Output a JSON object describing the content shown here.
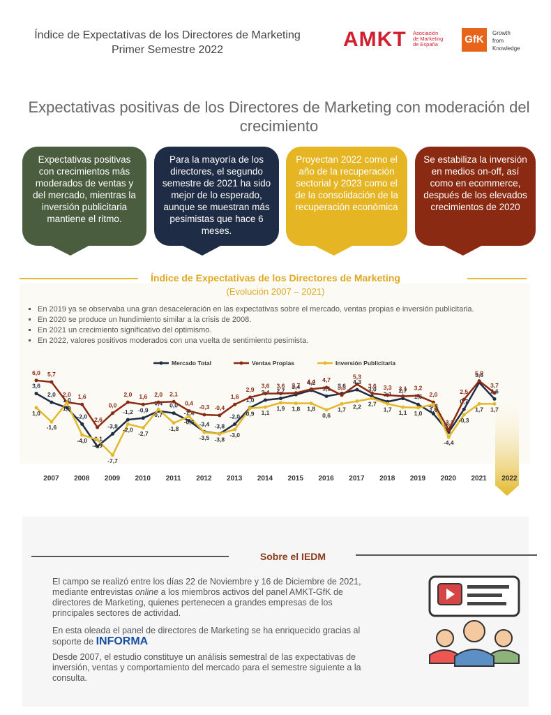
{
  "header": {
    "title": "Índice de Expectativas de los Directores de Marketing",
    "subtitle": "Primer Semestre 2022",
    "amkt": "AMKT",
    "amkt_lines": [
      "Asociación",
      "de Marketing",
      "de España"
    ],
    "gfk": "GfK",
    "gfk_lines": [
      "Growth",
      "from",
      "Knowledge"
    ]
  },
  "headline": "Expectativas positivas de los Directores de Marketing con moderación del crecimiento",
  "bubbles": [
    "Expectativas positivas con crecimientos más moderados de ventas y del mercado, mientras la inversión publicitaria mantiene el ritmo.",
    "Para la mayoría de los directores, el segundo semestre de 2021 ha sido mejor de lo esperado, aunque se muestran más pesimistas que hace 6 meses.",
    "Proyectan 2022 como el año de la recuperación sectorial y 2023 como el de la consolidación de la recuperación económica",
    "Se estabiliza la inversión en medios on-off, así como en ecommerce, después de los elevados crecimientos de 2020"
  ],
  "chart_data": {
    "type": "line",
    "title": "Índice de Expectativas de los Directores de Marketing",
    "subtitle": "(Evolución 2007 – 2021)",
    "bullets": [
      "En 2019 ya se observaba una gran desaceleración en las expectativas sobre el mercado, ventas propias e inversión publicitaria.",
      "En 2020 se produce un hundimiento similar a la crisis de 2008.",
      "En 2021 un crecimiento significativo del optimismo.",
      "En 2022, valores positivos moderados con una vuelta de sentimiento pesimista."
    ],
    "categories": [
      null,
      "2007",
      null,
      "2008",
      null,
      "2009",
      null,
      "2010",
      null,
      "2011",
      null,
      "2012",
      null,
      "2013",
      null,
      "2014",
      null,
      "2015",
      null,
      "2016",
      null,
      "2017",
      null,
      "2018",
      null,
      "2019",
      null,
      "2020",
      null,
      "2021",
      null,
      "2022"
    ],
    "ylim": [
      -9,
      7
    ],
    "series": [
      {
        "name": "Mercado Total",
        "color": "#1f2c45",
        "values": [
          3.6,
          2.0,
          1.0,
          -2.0,
          -6.1,
          -3.8,
          -1.2,
          -0.9,
          0.4,
          0.0,
          -1.4,
          -3.4,
          -3.8,
          -2.0,
          1.0,
          2.4,
          2.7,
          3.4,
          4.2,
          3.1,
          3.6,
          4.3,
          3.0,
          2.1,
          2.7,
          1.6,
          -0.1,
          -3.5,
          0.7,
          5.6,
          2.6,
          null
        ],
        "value_labels": [
          "3,6",
          "2,0",
          "1,0",
          "-2,0",
          "-6,1",
          "-3,8",
          "-1,2",
          "-0,9",
          "0,4",
          "0,0",
          "-1,4",
          "-3,4",
          "-3,8",
          "-2,0",
          "1,0",
          "2,4",
          "2,7",
          "3,4",
          "4,2",
          "3,1",
          "3,6",
          "4,3",
          "3,0",
          "2,1",
          "2,7",
          "1,6",
          "-0,1",
          "-3,5",
          "0,7",
          "5,6",
          "2,6",
          null
        ]
      },
      {
        "name": "Ventas Propias",
        "color": "#8b2a12",
        "values": [
          6.0,
          5.7,
          2.0,
          1.6,
          -2.6,
          0.0,
          2.0,
          1.6,
          2.0,
          2.1,
          0.4,
          -0.3,
          -0.4,
          1.6,
          2.9,
          3.6,
          3.6,
          3.7,
          4.4,
          4.7,
          3.3,
          5.3,
          3.6,
          3.3,
          3.1,
          3.2,
          2.0,
          -3.1,
          2.5,
          5.9,
          3.7,
          null
        ],
        "value_labels": [
          "6,0",
          "5,7",
          "2,0",
          "1,6",
          "-2,6",
          "0,0",
          "2,0",
          "1,6",
          "2,0",
          "2,1",
          "0,4",
          "-0,3",
          "-0,4",
          "1,6",
          "2,9",
          "3,6",
          "3,6",
          "3,7",
          "4,4",
          "4,7",
          "3,3",
          "5,3",
          "3,6",
          "3,3",
          "3,1",
          "3,2",
          "2,0",
          "-3,1",
          "2,5",
          "5,9",
          "3,7",
          null
        ]
      },
      {
        "name": "Inversión Publicitaria",
        "color": "#e3b82a",
        "values": [
          1.0,
          -1.6,
          1.9,
          -4.0,
          -4.9,
          -7.7,
          -2.0,
          -2.7,
          0.7,
          -1.8,
          -0.6,
          -3.5,
          -3.8,
          -3.0,
          0.9,
          1.1,
          1.9,
          1.8,
          1.8,
          0.6,
          1.7,
          2.2,
          2.7,
          1.7,
          1.1,
          1.0,
          1.6,
          -4.4,
          -0.3,
          1.7,
          1.7,
          null
        ],
        "value_labels": [
          "1,0",
          "-1,6",
          "1,9",
          "-4,0",
          "-4,9",
          "-7,7",
          "-2,0",
          "-2,7",
          "0,7",
          "-1,8",
          "-0,6",
          "-3,5",
          "-3,8",
          "-3,0",
          "0,9",
          "1,1",
          "1,9",
          "1,8",
          "1,8",
          "0,6",
          "1,7",
          "2,2",
          "2,7",
          "1,7",
          "1,1",
          "1,0",
          "1,6",
          "-4,4",
          "-0,3",
          "1,7",
          "1,7",
          null
        ]
      }
    ]
  },
  "about": {
    "title": "Sobre el IEDM",
    "p1": [
      "El campo se realizó entre los días 22 de Noviembre y 16 de Diciembre de 2021, mediante entrevistas ",
      "online",
      " a los miembros activos del panel AMKT-GfK de directores de Marketing, quienes pertenecen a grandes empresas de los principales sectores de actividad."
    ],
    "p2": "En esta oleada el panel de directores de Marketing se ha enriquecido gracias al soporte de",
    "informa": "INFORMA",
    "p3": "Desde 2007, el estudio constituye un análisis semestral de las expectativas de inversión, ventas y comportamiento del mercado para el semestre siguiente a la consulta."
  }
}
